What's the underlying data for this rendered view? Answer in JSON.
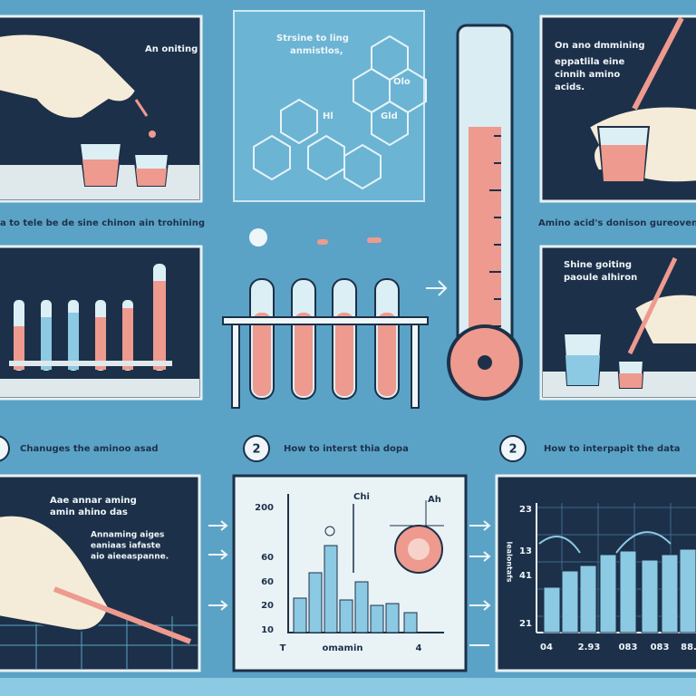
{
  "top_left": {
    "caption": "An oniting"
  },
  "chemistry": {
    "caption_lines": [
      "Strsine to ling",
      "anmistlos,"
    ],
    "labels": [
      "Olo",
      "Gld",
      "Hl"
    ]
  },
  "top_right": {
    "caption_lines": [
      "On ano dmmining",
      "eppatlila eine",
      "cinnih amino",
      "acids."
    ]
  },
  "captions": {
    "left": "a to tele be de sine chinon ain trohining",
    "right": "Amino acid's donison gureoven"
  },
  "mid_right": {
    "caption_lines": [
      "Shine goiting",
      "paoule alhiron"
    ]
  },
  "steps": [
    {
      "label": "Chanuges the aminoo asad"
    },
    {
      "number": "2",
      "label": "How to interst thia dopa"
    },
    {
      "number": "2",
      "label": "How to interpapit the data"
    }
  ],
  "bottom_left": {
    "caption_lines": [
      "Aae annar aming",
      "amin ahino das"
    ],
    "note_lines": [
      "Annaming aiges",
      "eaniaas iafaste",
      "aio aieeaspanne."
    ]
  },
  "bottom_center": {
    "title": "Chi",
    "annotation": "Ah",
    "y_labels": [
      "200",
      "60",
      "60",
      "20",
      "10"
    ],
    "x_labels": [
      "T",
      "omamin",
      "4"
    ]
  },
  "bottom_right": {
    "y_title": "lealontafs",
    "y_labels": [
      "23",
      "13",
      "41",
      "21"
    ],
    "x_labels": [
      "04",
      "2.93",
      "083",
      "083",
      "88."
    ]
  }
}
